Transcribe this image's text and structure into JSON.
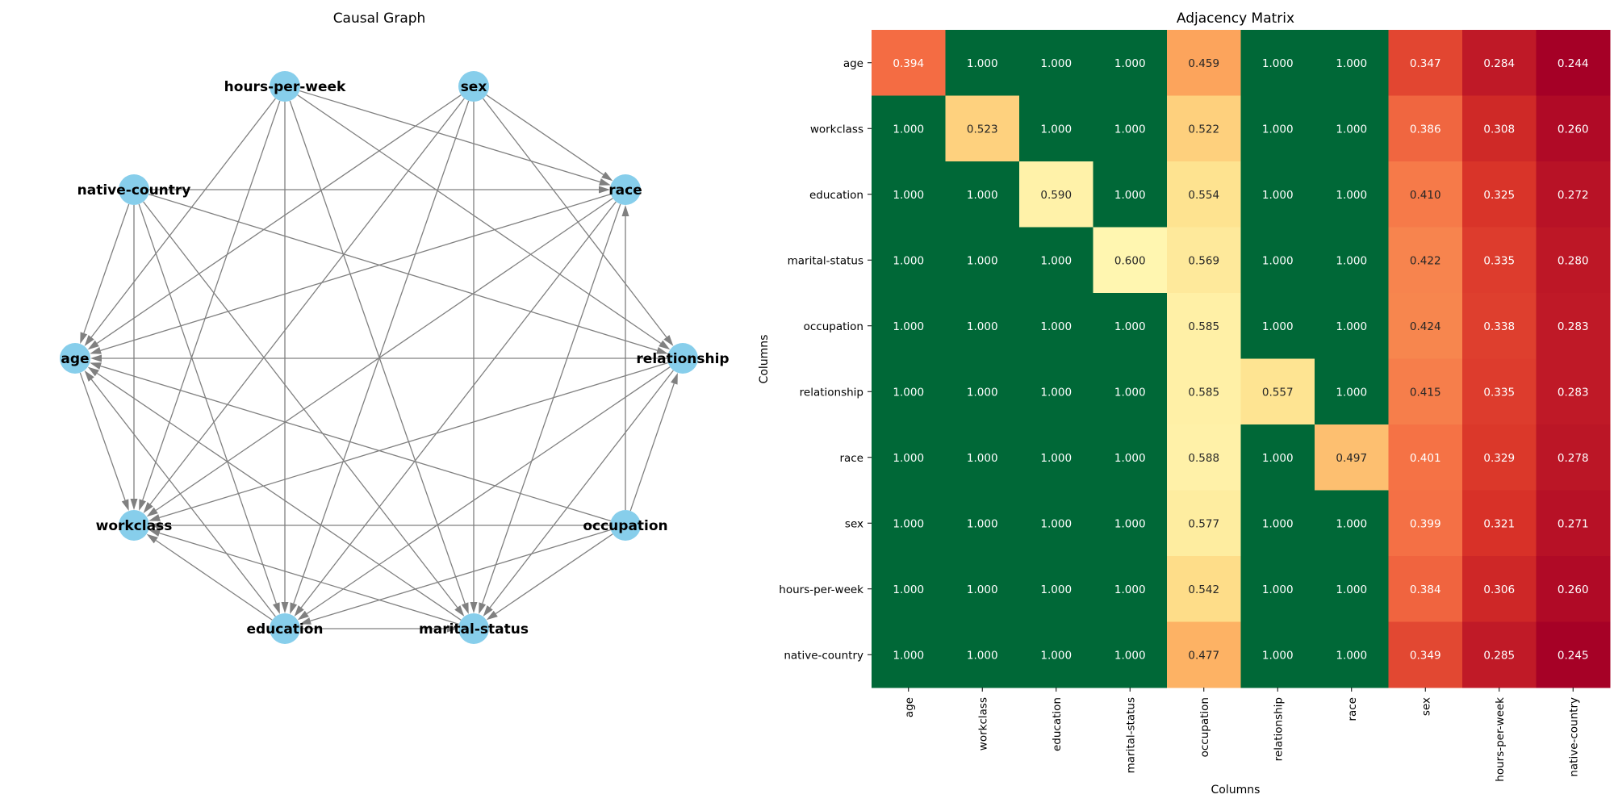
{
  "chart_data": [
    {
      "type": "network",
      "title": "Causal Graph",
      "nodes": [
        "hours-per-week",
        "sex",
        "native-country",
        "race",
        "age",
        "relationship",
        "workclass",
        "occupation",
        "education",
        "marital-status"
      ],
      "edges": [
        [
          "hours-per-week",
          "race"
        ],
        [
          "hours-per-week",
          "age"
        ],
        [
          "hours-per-week",
          "relationship"
        ],
        [
          "hours-per-week",
          "workclass"
        ],
        [
          "hours-per-week",
          "education"
        ],
        [
          "hours-per-week",
          "marital-status"
        ],
        [
          "sex",
          "race"
        ],
        [
          "sex",
          "age"
        ],
        [
          "sex",
          "relationship"
        ],
        [
          "sex",
          "workclass"
        ],
        [
          "sex",
          "education"
        ],
        [
          "sex",
          "marital-status"
        ],
        [
          "native-country",
          "race"
        ],
        [
          "native-country",
          "age"
        ],
        [
          "native-country",
          "relationship"
        ],
        [
          "native-country",
          "workclass"
        ],
        [
          "native-country",
          "education"
        ],
        [
          "native-country",
          "marital-status"
        ],
        [
          "race",
          "age"
        ],
        [
          "race",
          "workclass"
        ],
        [
          "race",
          "education"
        ],
        [
          "race",
          "marital-status"
        ],
        [
          "relationship",
          "age"
        ],
        [
          "relationship",
          "workclass"
        ],
        [
          "relationship",
          "education"
        ],
        [
          "relationship",
          "marital-status"
        ],
        [
          "occupation",
          "race"
        ],
        [
          "occupation",
          "age"
        ],
        [
          "occupation",
          "relationship"
        ],
        [
          "occupation",
          "workclass"
        ],
        [
          "occupation",
          "education"
        ],
        [
          "occupation",
          "marital-status"
        ],
        [
          "age",
          "workclass"
        ],
        [
          "education",
          "age"
        ],
        [
          "marital-status",
          "age"
        ],
        [
          "education",
          "workclass"
        ],
        [
          "marital-status",
          "workclass"
        ],
        [
          "education",
          "marital-status"
        ]
      ]
    },
    {
      "type": "heatmap",
      "title": "Adjacency Matrix",
      "xlabel": "Columns",
      "ylabel": "Columns",
      "rows": [
        "age",
        "workclass",
        "education",
        "marital-status",
        "occupation",
        "relationship",
        "race",
        "sex",
        "hours-per-week",
        "native-country"
      ],
      "cols": [
        "age",
        "workclass",
        "education",
        "marital-status",
        "occupation",
        "relationship",
        "race",
        "sex",
        "hours-per-week",
        "native-country"
      ],
      "values": [
        [
          0.394,
          1.0,
          1.0,
          1.0,
          0.459,
          1.0,
          1.0,
          0.347,
          0.284,
          0.244
        ],
        [
          1.0,
          0.523,
          1.0,
          1.0,
          0.522,
          1.0,
          1.0,
          0.386,
          0.308,
          0.26
        ],
        [
          1.0,
          1.0,
          0.59,
          1.0,
          0.554,
          1.0,
          1.0,
          0.41,
          0.325,
          0.272
        ],
        [
          1.0,
          1.0,
          1.0,
          0.6,
          0.569,
          1.0,
          1.0,
          0.422,
          0.335,
          0.28
        ],
        [
          1.0,
          1.0,
          1.0,
          1.0,
          0.585,
          1.0,
          1.0,
          0.424,
          0.338,
          0.283
        ],
        [
          1.0,
          1.0,
          1.0,
          1.0,
          0.585,
          0.557,
          1.0,
          0.415,
          0.335,
          0.283
        ],
        [
          1.0,
          1.0,
          1.0,
          1.0,
          0.588,
          1.0,
          0.497,
          0.401,
          0.329,
          0.278
        ],
        [
          1.0,
          1.0,
          1.0,
          1.0,
          0.577,
          1.0,
          1.0,
          0.399,
          0.321,
          0.271
        ],
        [
          1.0,
          1.0,
          1.0,
          1.0,
          0.542,
          1.0,
          1.0,
          0.384,
          0.306,
          0.26
        ],
        [
          1.0,
          1.0,
          1.0,
          1.0,
          0.477,
          1.0,
          1.0,
          0.349,
          0.285,
          0.245
        ]
      ],
      "colormap": "RdYlGn",
      "vmin": 0.244,
      "vmax": 1.0
    }
  ],
  "colors": {
    "node_fill": "#87ceeb",
    "edge": "#808080"
  }
}
